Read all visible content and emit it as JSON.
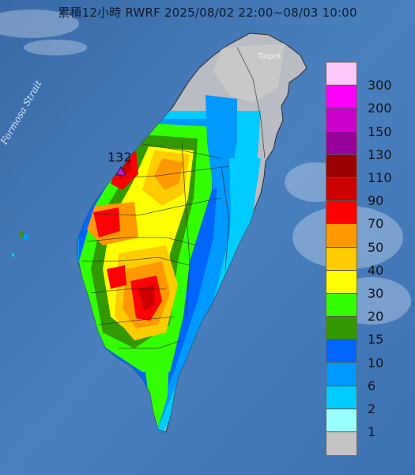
{
  "title": "累積12小時 RWRF 2025/08/02 22:00~08/03 10:00",
  "sea_label": "Formosa Strait",
  "city_label": "Taipei",
  "max_marker": {
    "value": "132",
    "color": "#c21bd8"
  },
  "legend": [
    {
      "label": "300",
      "color": "#fdc8fb"
    },
    {
      "label": "200",
      "color": "#fc00fc"
    },
    {
      "label": "150",
      "color": "#cc00cc"
    },
    {
      "label": "130",
      "color": "#990099"
    },
    {
      "label": "110",
      "color": "#990000"
    },
    {
      "label": "90",
      "color": "#cc0000"
    },
    {
      "label": "70",
      "color": "#ff0000"
    },
    {
      "label": "50",
      "color": "#ff9900"
    },
    {
      "label": "40",
      "color": "#ffcc00"
    },
    {
      "label": "30",
      "color": "#ffff00"
    },
    {
      "label": "20",
      "color": "#33ff00"
    },
    {
      "label": "15",
      "color": "#339900"
    },
    {
      "label": "10",
      "color": "#0066ff"
    },
    {
      "label": "6",
      "color": "#0099ff"
    },
    {
      "label": "2",
      "color": "#00ccff"
    },
    {
      "label": "1",
      "color": "#99ffff"
    },
    {
      "label": "",
      "color": "#c4c4c4"
    }
  ]
}
